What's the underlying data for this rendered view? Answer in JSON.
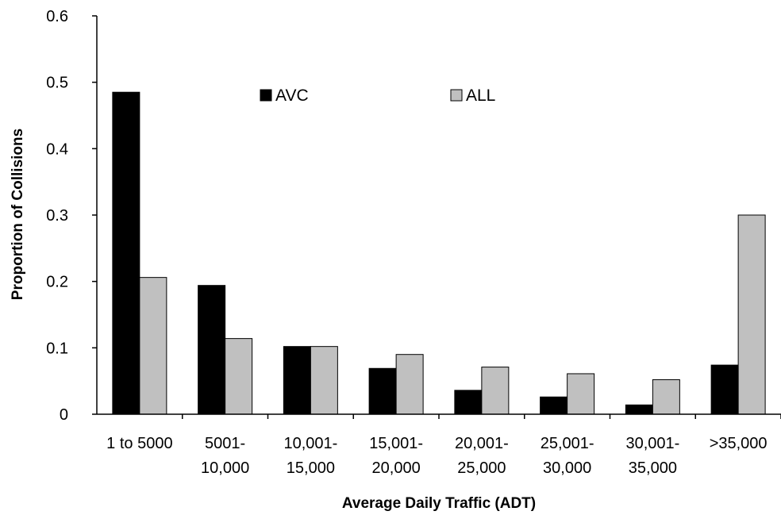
{
  "chart_data": {
    "type": "bar",
    "title": "",
    "xlabel": "Average Daily Traffic (ADT)",
    "ylabel": "Proportion of Collisions",
    "ylim": [
      0,
      0.6
    ],
    "yticks": [
      "0",
      "0.1",
      "0.2",
      "0.3",
      "0.4",
      "0.5",
      "0.6"
    ],
    "categories": [
      [
        "1 to 5000"
      ],
      [
        "5001-",
        "10,000"
      ],
      [
        "10,001-",
        "15,000"
      ],
      [
        "15,001-",
        "20,000"
      ],
      [
        "20,001-",
        "25,000"
      ],
      [
        "25,001-",
        "30,000"
      ],
      [
        "30,001-",
        "35,000"
      ],
      [
        ">35,000"
      ]
    ],
    "series": [
      {
        "name": "AVC",
        "color": "#000000",
        "values": [
          0.485,
          0.194,
          0.102,
          0.069,
          0.036,
          0.026,
          0.014,
          0.074
        ]
      },
      {
        "name": "ALL",
        "color": "#c0c0c0",
        "values": [
          0.206,
          0.114,
          0.102,
          0.09,
          0.071,
          0.061,
          0.052,
          0.3
        ]
      }
    ],
    "legend_position": "top-center",
    "grid": false
  }
}
